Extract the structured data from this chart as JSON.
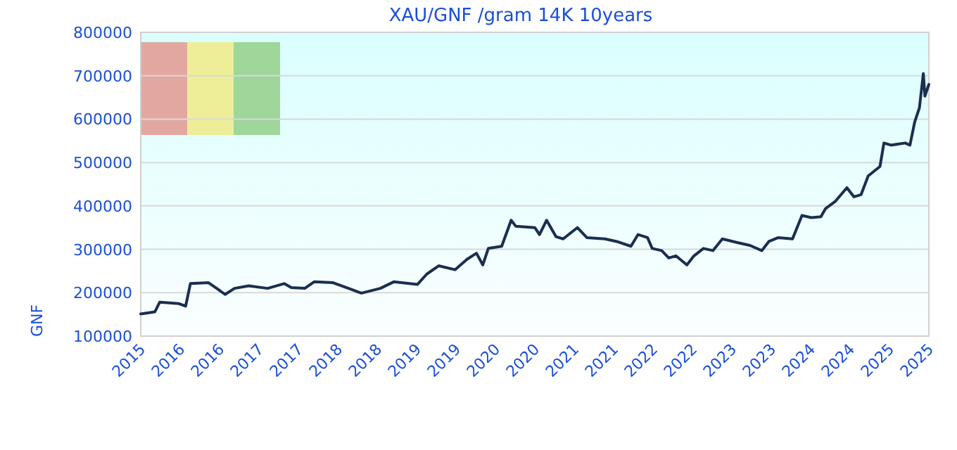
{
  "chart_data": {
    "type": "line",
    "title": "XAU/GNF /gram 14K 10years",
    "ylabel": "GNF",
    "x": [
      2015.5,
      2015.68,
      2015.74,
      2015.98,
      2016.07,
      2016.13,
      2016.36,
      2016.48,
      2016.57,
      2016.69,
      2016.87,
      2017.11,
      2017.32,
      2017.41,
      2017.58,
      2017.7,
      2017.94,
      2018.18,
      2018.3,
      2018.54,
      2018.71,
      2019.01,
      2019.13,
      2019.28,
      2019.49,
      2019.64,
      2019.76,
      2019.84,
      2019.91,
      2020.08,
      2020.2,
      2020.26,
      2020.5,
      2020.56,
      2020.65,
      2020.77,
      2020.86,
      2021.04,
      2021.16,
      2021.39,
      2021.54,
      2021.72,
      2021.81,
      2021.93,
      2021.99,
      2022.11,
      2022.2,
      2022.29,
      2022.43,
      2022.52,
      2022.64,
      2022.76,
      2022.88,
      2023.06,
      2023.23,
      2023.38,
      2023.47,
      2023.59,
      2023.77,
      2023.89,
      2024.01,
      2024.13,
      2024.19,
      2024.31,
      2024.46,
      2024.55,
      2024.64,
      2024.73,
      2024.88,
      2024.93,
      2025.02,
      2025.2,
      2025.26,
      2025.32,
      2025.38,
      2025.43,
      2025.45,
      2025.5
    ],
    "series": [
      {
        "color": "#1a2e50",
        "values": [
          151000,
          156000,
          178000,
          175000,
          169000,
          221000,
          223000,
          208000,
          196000,
          210000,
          216000,
          210000,
          221000,
          212000,
          210000,
          225000,
          223000,
          207000,
          199000,
          210000,
          225000,
          219000,
          243000,
          262000,
          253000,
          277000,
          291000,
          264000,
          302000,
          307000,
          367000,
          353000,
          350000,
          334000,
          367000,
          329000,
          324000,
          350000,
          327000,
          324000,
          318000,
          307000,
          334000,
          327000,
          302000,
          297000,
          280000,
          285000,
          264000,
          285000,
          302000,
          297000,
          324000,
          316000,
          309000,
          297000,
          318000,
          327000,
          324000,
          378000,
          373000,
          375000,
          394000,
          410000,
          442000,
          421000,
          426000,
          469000,
          491000,
          545000,
          540000,
          545000,
          540000,
          593000,
          626000,
          705000,
          653000,
          680000
        ]
      }
    ],
    "xlim": [
      2015.5,
      2025.5
    ],
    "xticks": [
      {
        "value": 2015.5,
        "label": "2015"
      },
      {
        "value": 2016,
        "label": "2016"
      },
      {
        "value": 2016.5,
        "label": "2016"
      },
      {
        "value": 2017,
        "label": "2017"
      },
      {
        "value": 2017.5,
        "label": "2017"
      },
      {
        "value": 2018,
        "label": "2018"
      },
      {
        "value": 2018.5,
        "label": "2018"
      },
      {
        "value": 2019,
        "label": "2019"
      },
      {
        "value": 2019.5,
        "label": "2019"
      },
      {
        "value": 2020,
        "label": "2020"
      },
      {
        "value": 2020.5,
        "label": "2020"
      },
      {
        "value": 2021,
        "label": "2021"
      },
      {
        "value": 2021.5,
        "label": "2021"
      },
      {
        "value": 2022,
        "label": "2022"
      },
      {
        "value": 2022.5,
        "label": "2022"
      },
      {
        "value": 2023,
        "label": "2023"
      },
      {
        "value": 2023.5,
        "label": "2023"
      },
      {
        "value": 2024,
        "label": "2024"
      },
      {
        "value": 2024.5,
        "label": "2024"
      },
      {
        "value": 2025,
        "label": "2025"
      },
      {
        "value": 2025.5,
        "label": "2025"
      }
    ],
    "ylim": [
      100000,
      800000
    ],
    "yticks": [
      100000,
      200000,
      300000,
      400000,
      500000,
      600000,
      700000,
      800000
    ],
    "grid": "y"
  }
}
